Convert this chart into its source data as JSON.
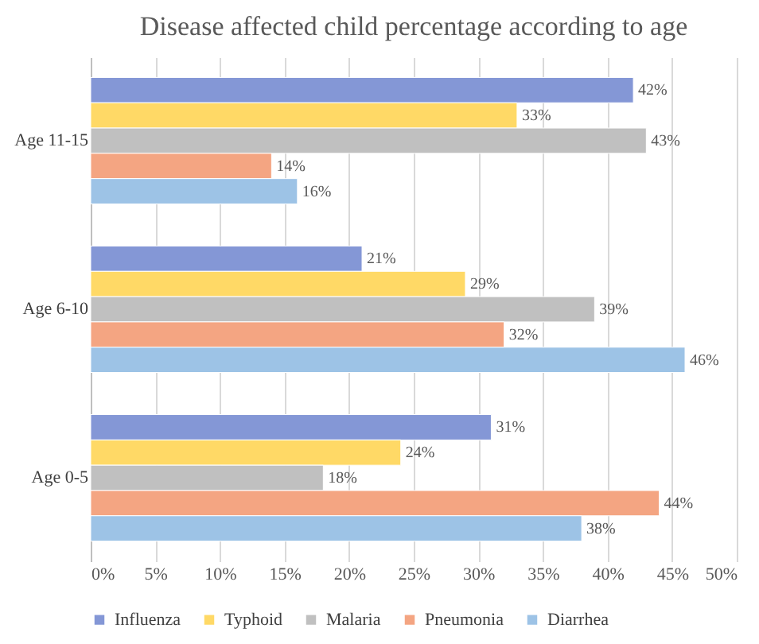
{
  "chart_data": {
    "type": "bar",
    "orientation": "horizontal",
    "title": "Disease affected child percentage according to age",
    "categories": [
      "Age 11-15",
      "Age 6-10",
      "Age 0-5"
    ],
    "series": [
      {
        "name": "Influenza",
        "color": "#8497d6",
        "values": [
          42,
          21,
          31
        ],
        "value_labels": [
          "42%",
          "21%",
          "31%"
        ]
      },
      {
        "name": "Typhoid",
        "color": "#ffd966",
        "values": [
          33,
          29,
          24
        ],
        "value_labels": [
          "33%",
          "29%",
          "24%"
        ]
      },
      {
        "name": "Malaria",
        "color": "#c0c0c0",
        "values": [
          43,
          39,
          18
        ],
        "value_labels": [
          "43%",
          "39%",
          "18%"
        ]
      },
      {
        "name": "Pneumonia",
        "color": "#f4a582",
        "values": [
          14,
          32,
          44
        ],
        "value_labels": [
          "14%",
          "32%",
          "44%"
        ]
      },
      {
        "name": "Diarrhea",
        "color": "#9dc3e6",
        "values": [
          16,
          46,
          38
        ],
        "value_labels": [
          "16%",
          "46%",
          "38%"
        ]
      }
    ],
    "xlim": [
      0,
      50
    ],
    "xticks": [
      {
        "value": 0,
        "label": "0%"
      },
      {
        "value": 5,
        "label": "5%"
      },
      {
        "value": 10,
        "label": "10%"
      },
      {
        "value": 15,
        "label": "15%"
      },
      {
        "value": 20,
        "label": "20%"
      },
      {
        "value": 25,
        "label": "25%"
      },
      {
        "value": 30,
        "label": "30%"
      },
      {
        "value": 35,
        "label": "35%"
      },
      {
        "value": 40,
        "label": "40%"
      },
      {
        "value": 45,
        "label": "45%"
      },
      {
        "value": 50,
        "label": "50%"
      }
    ],
    "grid": "x",
    "legend": "bottom"
  }
}
